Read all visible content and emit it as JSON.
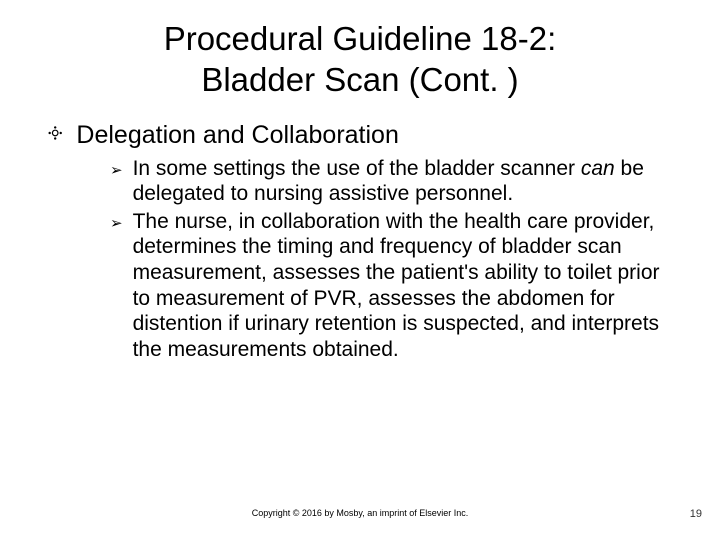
{
  "title_line1": "Procedural Guideline 18-2:",
  "title_line2": "Bladder Scan (Cont. )",
  "section_bullet": "༓",
  "section_heading": "Delegation and Collaboration",
  "sub_bullet": "➢",
  "sub1_prefix": "In some settings the use of the bladder scanner ",
  "sub1_can": "can",
  "sub1_suffix": " be delegated to nursing assistive personnel.",
  "sub2": "The nurse, in collaboration with the health care provider, determines the timing and frequency of bladder scan measurement, assesses the patient's ability to toilet prior to measurement of PVR, assesses the abdomen for distention if urinary retention is suspected, and interprets the measurements obtained.",
  "copyright": "Copyright © 2016 by Mosby, an imprint of Elsevier Inc.",
  "page_number": "19"
}
